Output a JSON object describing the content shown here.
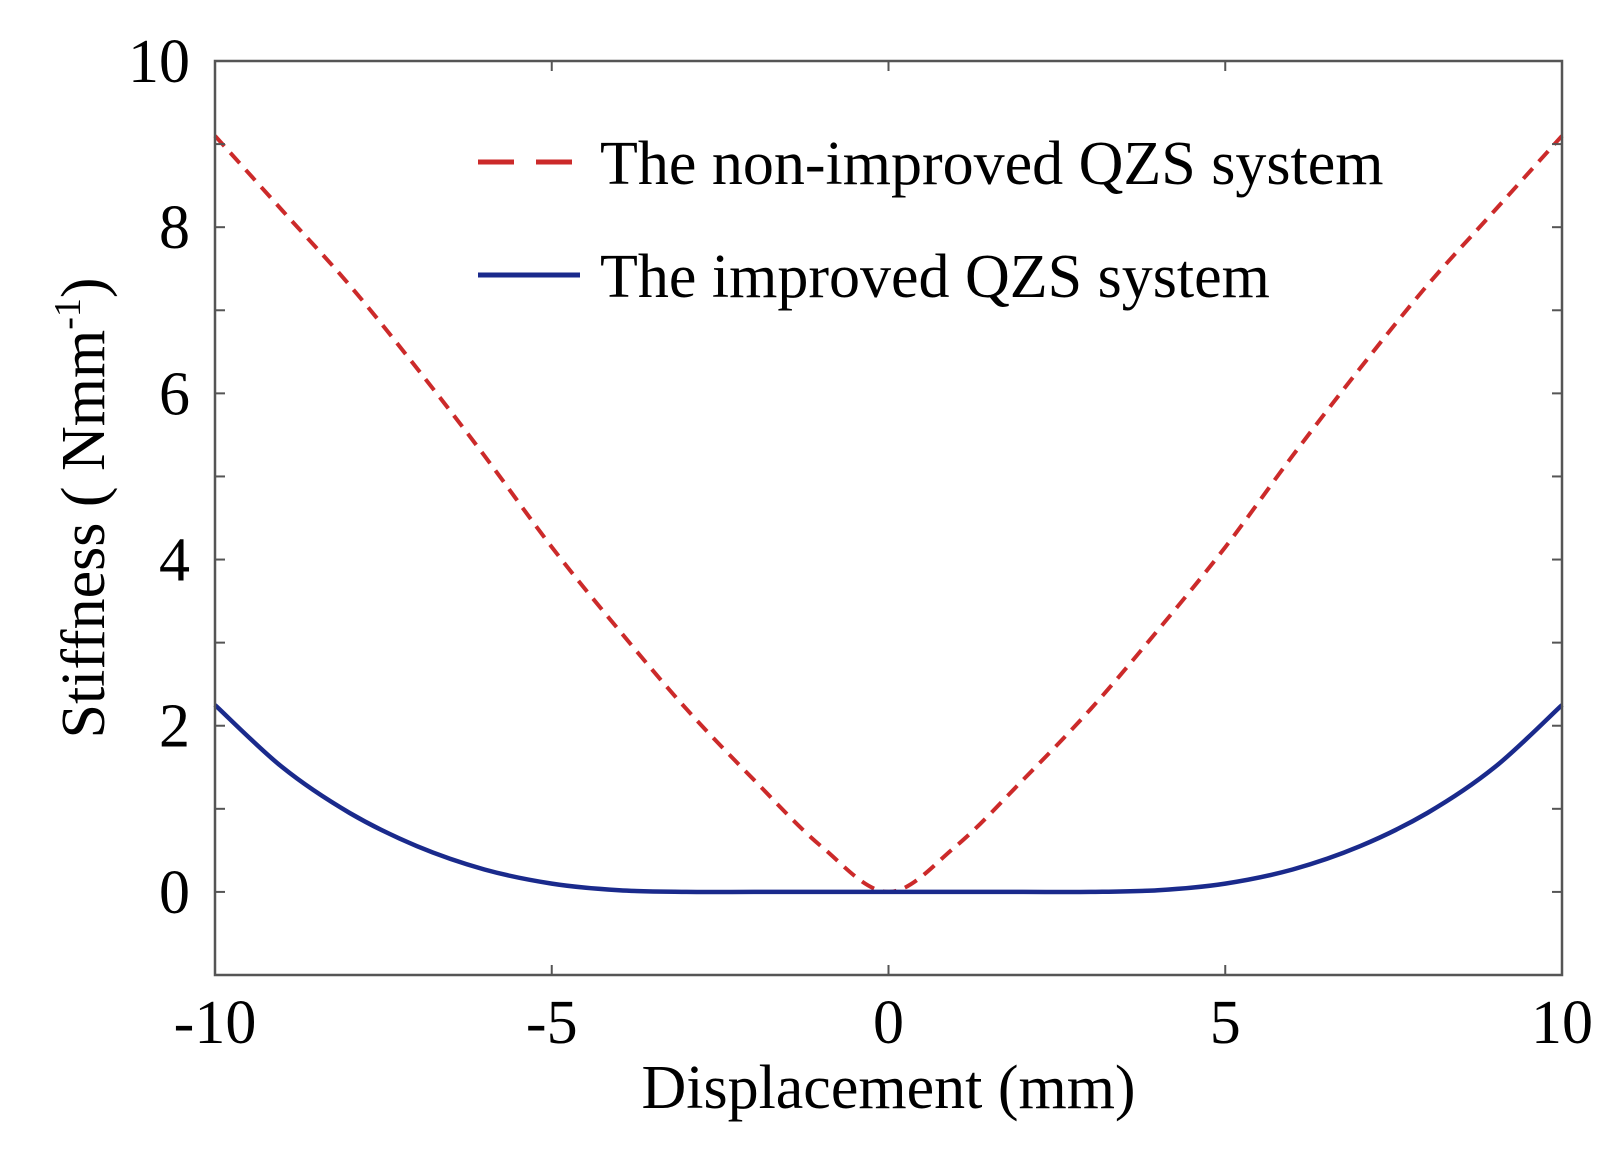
{
  "chart_data": {
    "type": "line",
    "title": "",
    "xlabel": "Displacement (mm)",
    "ylabel": "Stiffness ( Nmm",
    "ylabel_superscript": "-1",
    "ylabel_close": ")",
    "xlim": [
      -10,
      10
    ],
    "ylim": [
      -1,
      10
    ],
    "xticks": [
      -10,
      -5,
      0,
      5,
      10
    ],
    "xtick_labels": [
      "-10",
      "-5",
      "0",
      "5",
      "10"
    ],
    "yticks": [
      0,
      2,
      4,
      6,
      8,
      10
    ],
    "ytick_labels": [
      "0",
      "2",
      "4",
      "6",
      "8",
      "10"
    ],
    "grid": false,
    "legend_position": "top-right",
    "series": [
      {
        "name": "The non-improved QZS system",
        "color": "#cc2a2a",
        "style": "dashed",
        "x": [
          -10,
          -9,
          -8,
          -7,
          -6,
          -5,
          -4,
          -3,
          -2,
          -1,
          0,
          1,
          2,
          3,
          4,
          5,
          6,
          7,
          8,
          9,
          10
        ],
        "y": [
          9.1,
          8.2,
          7.3,
          6.3,
          5.25,
          4.15,
          3.15,
          2.2,
          1.35,
          0.55,
          0.0,
          0.55,
          1.35,
          2.2,
          3.15,
          4.15,
          5.25,
          6.3,
          7.3,
          8.2,
          9.1
        ]
      },
      {
        "name": "The improved QZS system",
        "color": "#1a2a8c",
        "style": "solid",
        "x": [
          -10,
          -9,
          -8,
          -7,
          -6,
          -5,
          -4,
          -3,
          -2,
          -1,
          0,
          1,
          2,
          3,
          4,
          5,
          6,
          7,
          8,
          9,
          10
        ],
        "y": [
          2.25,
          1.5,
          0.95,
          0.55,
          0.27,
          0.1,
          0.02,
          0.0,
          0.0,
          0.0,
          0.0,
          0.0,
          0.0,
          0.0,
          0.02,
          0.1,
          0.27,
          0.55,
          0.95,
          1.5,
          2.25
        ]
      }
    ]
  }
}
